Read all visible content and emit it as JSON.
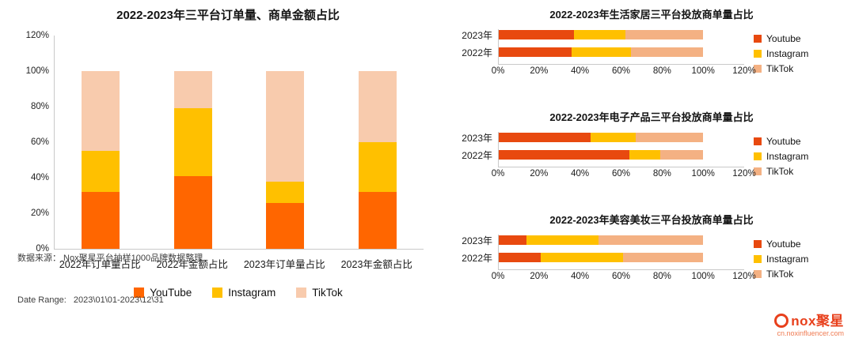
{
  "chart_data": [
    {
      "type": "bar",
      "subtype": "stacked-vertical",
      "title": "2022-2023年三平台订单量、商单金额占比",
      "categories": [
        "2022年订单量占比",
        "2022年金额占比",
        "2023年订单量占比",
        "2023年金额占比"
      ],
      "series": [
        {
          "name": "YouTube",
          "color": "#FF6600",
          "values": [
            32,
            41,
            26,
            32
          ]
        },
        {
          "name": "Instagram",
          "color": "#FFC000",
          "values": [
            23,
            38,
            12,
            28
          ]
        },
        {
          "name": "TikTok",
          "color": "#F8CBAD",
          "values": [
            45,
            21,
            62,
            40
          ]
        }
      ],
      "ylim": [
        0,
        120
      ],
      "y_ticks": [
        "0%",
        "20%",
        "40%",
        "60%",
        "80%",
        "100%",
        "120%"
      ],
      "xlabel": "",
      "ylabel": "",
      "legend_position": "bottom",
      "grid": false,
      "unit": "%"
    },
    {
      "type": "bar",
      "subtype": "stacked-horizontal",
      "title": "2022-2023年生活家居三平台投放商单量占比",
      "rows": [
        "2023年",
        "2022年"
      ],
      "series": [
        {
          "name": "Youtube",
          "color": "#E8490F",
          "values": [
            37,
            36
          ]
        },
        {
          "name": "Instagram",
          "color": "#FFC000",
          "values": [
            25,
            29
          ]
        },
        {
          "name": "TikTok",
          "color": "#F4B183",
          "values": [
            38,
            35
          ]
        }
      ],
      "xlim": [
        0,
        120
      ],
      "x_ticks": [
        "0%",
        "20%",
        "40%",
        "60%",
        "80%",
        "100%",
        "120%"
      ],
      "legend_position": "right",
      "grid": false,
      "unit": "%"
    },
    {
      "type": "bar",
      "subtype": "stacked-horizontal",
      "title": "2022-2023年电子产品三平台投放商单量占比",
      "rows": [
        "2023年",
        "2022年"
      ],
      "series": [
        {
          "name": "Youtube",
          "color": "#E8490F",
          "values": [
            45,
            64
          ]
        },
        {
          "name": "Instagram",
          "color": "#FFC000",
          "values": [
            22,
            15
          ]
        },
        {
          "name": "TikTok",
          "color": "#F4B183",
          "values": [
            33,
            21
          ]
        }
      ],
      "xlim": [
        0,
        120
      ],
      "x_ticks": [
        "0%",
        "20%",
        "40%",
        "60%",
        "80%",
        "100%",
        "120%"
      ],
      "legend_position": "right",
      "grid": false,
      "unit": "%"
    },
    {
      "type": "bar",
      "subtype": "stacked-horizontal",
      "title": "2022-2023年美容美妆三平台投放商单量占比",
      "rows": [
        "2023年",
        "2022年"
      ],
      "series": [
        {
          "name": "Youtube",
          "color": "#E8490F",
          "values": [
            14,
            21
          ]
        },
        {
          "name": "Instagram",
          "color": "#FFC000",
          "values": [
            35,
            40
          ]
        },
        {
          "name": "TikTok",
          "color": "#F4B183",
          "values": [
            51,
            39
          ]
        }
      ],
      "xlim": [
        0,
        120
      ],
      "x_ticks": [
        "0%",
        "20%",
        "40%",
        "60%",
        "80%",
        "100%",
        "120%"
      ],
      "legend_position": "right",
      "grid": false,
      "unit": "%"
    }
  ],
  "footer": {
    "source_line": "数据来源： Nox聚星平台抽样1000品牌数据整理",
    "date_line": "Date Range:   2023\\01\\01-2023\\12\\31"
  },
  "logo": {
    "brand": "nox聚星",
    "site": "cn.noxinfluencer.com",
    "color": "#E8401C"
  }
}
